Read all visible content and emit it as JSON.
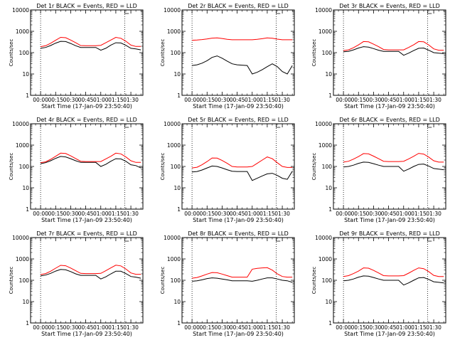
{
  "shared": {
    "xlabel": "Start Time (17-Jan-09 23:50:40)",
    "ylabel": "Counts/sec",
    "x_tick_labels": [
      "00:00",
      "00:15",
      "00:30",
      "00:45",
      "01:00",
      "01:15",
      "01:30"
    ],
    "y_tick_labels": [
      "1",
      "10",
      "100",
      "1000",
      "10000"
    ],
    "series_colors": {
      "events": "#000000",
      "lld": "#ff0000"
    }
  },
  "chart_data": [
    {
      "type": "line",
      "title": "Det 1r BLACK = Events, RED = LLD",
      "scale_y": "log",
      "ylim": [
        1,
        10000
      ],
      "xlim_minutes": [
        -10,
        102
      ],
      "x_minutes": [
        0,
        5,
        10,
        15,
        20,
        25,
        30,
        35,
        40,
        45,
        50,
        55,
        60,
        65,
        70,
        75,
        80,
        85,
        90,
        95,
        100
      ],
      "vlines_minutes": [
        0,
        84
      ],
      "series": [
        {
          "values": [
            160,
            175,
            215,
            280,
            340,
            330,
            270,
            210,
            175,
            175,
            175,
            175,
            130,
            160,
            225,
            290,
            285,
            220,
            160,
            150,
            135
          ]
        },
        {
          "values": [
            190,
            210,
            275,
            380,
            520,
            500,
            390,
            290,
            215,
            210,
            210,
            210,
            220,
            290,
            390,
            520,
            470,
            345,
            225,
            195,
            195
          ]
        }
      ]
    },
    {
      "type": "line",
      "title": "Det 2r BLACK = Events, RED = LLD",
      "scale_y": "log",
      "ylim": [
        1,
        10000
      ],
      "xlim_minutes": [
        -10,
        102
      ],
      "x_minutes": [
        0,
        5,
        10,
        15,
        20,
        25,
        30,
        35,
        40,
        45,
        50,
        55,
        60,
        65,
        70,
        75,
        80,
        85,
        90,
        95,
        100
      ],
      "vlines_minutes": [
        0,
        84
      ],
      "series": [
        {
          "values": [
            25,
            27,
            32,
            42,
            60,
            70,
            55,
            40,
            30,
            27,
            26,
            25,
            10,
            12,
            16,
            22,
            30,
            22,
            13,
            10,
            25
          ]
        },
        {
          "values": [
            380,
            390,
            410,
            440,
            480,
            490,
            460,
            420,
            400,
            400,
            400,
            400,
            400,
            420,
            450,
            490,
            470,
            430,
            400,
            400,
            400
          ]
        }
      ]
    },
    {
      "type": "line",
      "title": "Det 3r BLACK = Events, RED = LLD",
      "scale_y": "log",
      "ylim": [
        1,
        10000
      ],
      "xlim_minutes": [
        -10,
        102
      ],
      "x_minutes": [
        0,
        5,
        10,
        15,
        20,
        25,
        30,
        35,
        40,
        45,
        50,
        55,
        60,
        65,
        70,
        75,
        80,
        85,
        90,
        95,
        100
      ],
      "vlines_minutes": [
        0,
        84
      ],
      "series": [
        {
          "values": [
            110,
            115,
            135,
            165,
            190,
            180,
            155,
            130,
            115,
            115,
            115,
            115,
            75,
            95,
            125,
            160,
            165,
            130,
            100,
            95,
            90
          ]
        },
        {
          "values": [
            125,
            135,
            170,
            230,
            330,
            320,
            250,
            190,
            140,
            135,
            135,
            135,
            135,
            175,
            235,
            330,
            320,
            230,
            150,
            130,
            130
          ]
        }
      ]
    },
    {
      "type": "line",
      "title": "Det 4r BLACK = Events, RED = LLD",
      "scale_y": "log",
      "ylim": [
        1,
        10000
      ],
      "xlim_minutes": [
        -10,
        102
      ],
      "x_minutes": [
        0,
        5,
        10,
        15,
        20,
        25,
        30,
        35,
        40,
        45,
        50,
        55,
        60,
        65,
        70,
        75,
        80,
        85,
        90,
        95,
        100
      ],
      "vlines_minutes": [
        0,
        84
      ],
      "series": [
        {
          "values": [
            135,
            150,
            185,
            240,
            295,
            280,
            230,
            185,
            155,
            155,
            155,
            155,
            100,
            125,
            175,
            230,
            225,
            175,
            120,
            110,
            85
          ]
        },
        {
          "values": [
            150,
            165,
            215,
            300,
            420,
            405,
            315,
            235,
            175,
            170,
            170,
            170,
            170,
            225,
            300,
            420,
            390,
            280,
            185,
            155,
            155
          ]
        }
      ]
    },
    {
      "type": "line",
      "title": "Det 5r BLACK = Events, RED = LLD",
      "scale_y": "log",
      "ylim": [
        1,
        10000
      ],
      "xlim_minutes": [
        -10,
        102
      ],
      "x_minutes": [
        0,
        5,
        10,
        15,
        20,
        25,
        30,
        35,
        40,
        45,
        50,
        55,
        60,
        65,
        70,
        75,
        80,
        85,
        90,
        95,
        100
      ],
      "vlines_minutes": [
        0,
        84
      ],
      "series": [
        {
          "values": [
            55,
            58,
            68,
            85,
            105,
            100,
            85,
            70,
            60,
            58,
            58,
            58,
            22,
            28,
            36,
            45,
            48,
            38,
            28,
            25,
            60
          ]
        },
        {
          "values": [
            85,
            92,
            120,
            170,
            250,
            245,
            190,
            140,
            100,
            95,
            95,
            95,
            100,
            140,
            200,
            280,
            230,
            150,
            100,
            90,
            90
          ]
        }
      ]
    },
    {
      "type": "line",
      "title": "Det 6r BLACK = Events, RED = LLD",
      "scale_y": "log",
      "ylim": [
        1,
        10000
      ],
      "xlim_minutes": [
        -10,
        102
      ],
      "x_minutes": [
        0,
        5,
        10,
        15,
        20,
        25,
        30,
        35,
        40,
        45,
        50,
        55,
        60,
        65,
        70,
        75,
        80,
        85,
        90,
        95,
        100
      ],
      "vlines_minutes": [
        0,
        84
      ],
      "series": [
        {
          "values": [
            95,
            100,
            115,
            140,
            160,
            155,
            135,
            115,
            100,
            100,
            100,
            100,
            60,
            75,
            100,
            125,
            130,
            105,
            80,
            75,
            70
          ]
        },
        {
          "values": [
            160,
            175,
            220,
            290,
            400,
            390,
            305,
            230,
            175,
            170,
            170,
            170,
            175,
            225,
            300,
            410,
            380,
            275,
            185,
            160,
            160
          ]
        }
      ]
    },
    {
      "type": "line",
      "title": "Det 7r BLACK = Events, RED = LLD",
      "scale_y": "log",
      "ylim": [
        1,
        10000
      ],
      "xlim_minutes": [
        -10,
        102
      ],
      "x_minutes": [
        0,
        5,
        10,
        15,
        20,
        25,
        30,
        35,
        40,
        45,
        50,
        55,
        60,
        65,
        70,
        75,
        80,
        85,
        90,
        95,
        100
      ],
      "vlines_minutes": [
        0,
        84
      ],
      "series": [
        {
          "values": [
            160,
            175,
            210,
            270,
            320,
            310,
            255,
            200,
            170,
            170,
            170,
            170,
            115,
            145,
            200,
            265,
            265,
            205,
            150,
            140,
            125
          ]
        },
        {
          "values": [
            185,
            205,
            265,
            370,
            500,
            480,
            375,
            280,
            210,
            205,
            205,
            205,
            210,
            280,
            380,
            510,
            470,
            340,
            220,
            190,
            190
          ]
        }
      ]
    },
    {
      "type": "line",
      "title": "Det 8r BLACK = Events, RED = LLD",
      "scale_y": "log",
      "ylim": [
        1,
        10000
      ],
      "xlim_minutes": [
        -10,
        102
      ],
      "x_minutes": [
        0,
        5,
        10,
        15,
        20,
        25,
        30,
        35,
        40,
        45,
        50,
        55,
        60,
        65,
        70,
        75,
        80,
        85,
        90,
        95,
        100
      ],
      "vlines_minutes": [
        0,
        84
      ],
      "series": [
        {
          "values": [
            90,
            95,
            105,
            120,
            130,
            125,
            115,
            105,
            95,
            95,
            95,
            95,
            90,
            100,
            115,
            130,
            130,
            115,
            100,
            95,
            80
          ]
        },
        {
          "values": [
            125,
            135,
            160,
            195,
            230,
            225,
            195,
            165,
            140,
            140,
            140,
            140,
            330,
            360,
            380,
            390,
            300,
            200,
            150,
            140,
            140
          ]
        }
      ]
    },
    {
      "type": "line",
      "title": "Det 9r BLACK = Events, RED = LLD",
      "scale_y": "log",
      "ylim": [
        1,
        10000
      ],
      "xlim_minutes": [
        -10,
        102
      ],
      "x_minutes": [
        0,
        5,
        10,
        15,
        20,
        25,
        30,
        35,
        40,
        45,
        50,
        55,
        60,
        65,
        70,
        75,
        80,
        85,
        90,
        95,
        100
      ],
      "vlines_minutes": [
        0,
        84
      ],
      "series": [
        {
          "values": [
            95,
            100,
            115,
            140,
            160,
            155,
            135,
            115,
            100,
            100,
            100,
            100,
            60,
            75,
            100,
            130,
            135,
            110,
            85,
            80,
            75
          ]
        },
        {
          "values": [
            150,
            165,
            205,
            270,
            380,
            370,
            290,
            220,
            165,
            160,
            160,
            160,
            165,
            215,
            290,
            380,
            350,
            255,
            170,
            150,
            150
          ]
        }
      ]
    }
  ]
}
